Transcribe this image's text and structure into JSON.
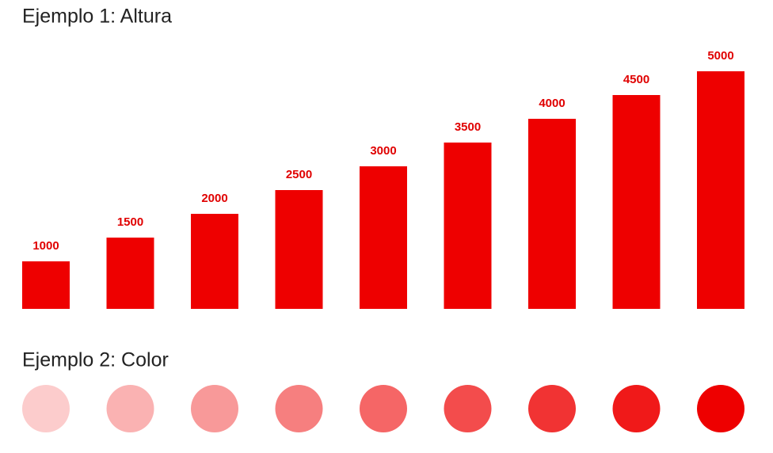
{
  "chart_data": [
    {
      "type": "bar",
      "title": "Ejemplo 1: Altura",
      "values": [
        1000,
        1500,
        2000,
        2500,
        3000,
        3500,
        4000,
        4500,
        5000
      ],
      "color": "#ee0000",
      "ylim": [
        0,
        5000
      ]
    },
    {
      "type": "dot",
      "title": "Ejemplo 2: Color",
      "values": [
        1000,
        1500,
        2000,
        2500,
        3000,
        3500,
        4000,
        4500,
        5000
      ],
      "color": "#ee0000"
    }
  ]
}
